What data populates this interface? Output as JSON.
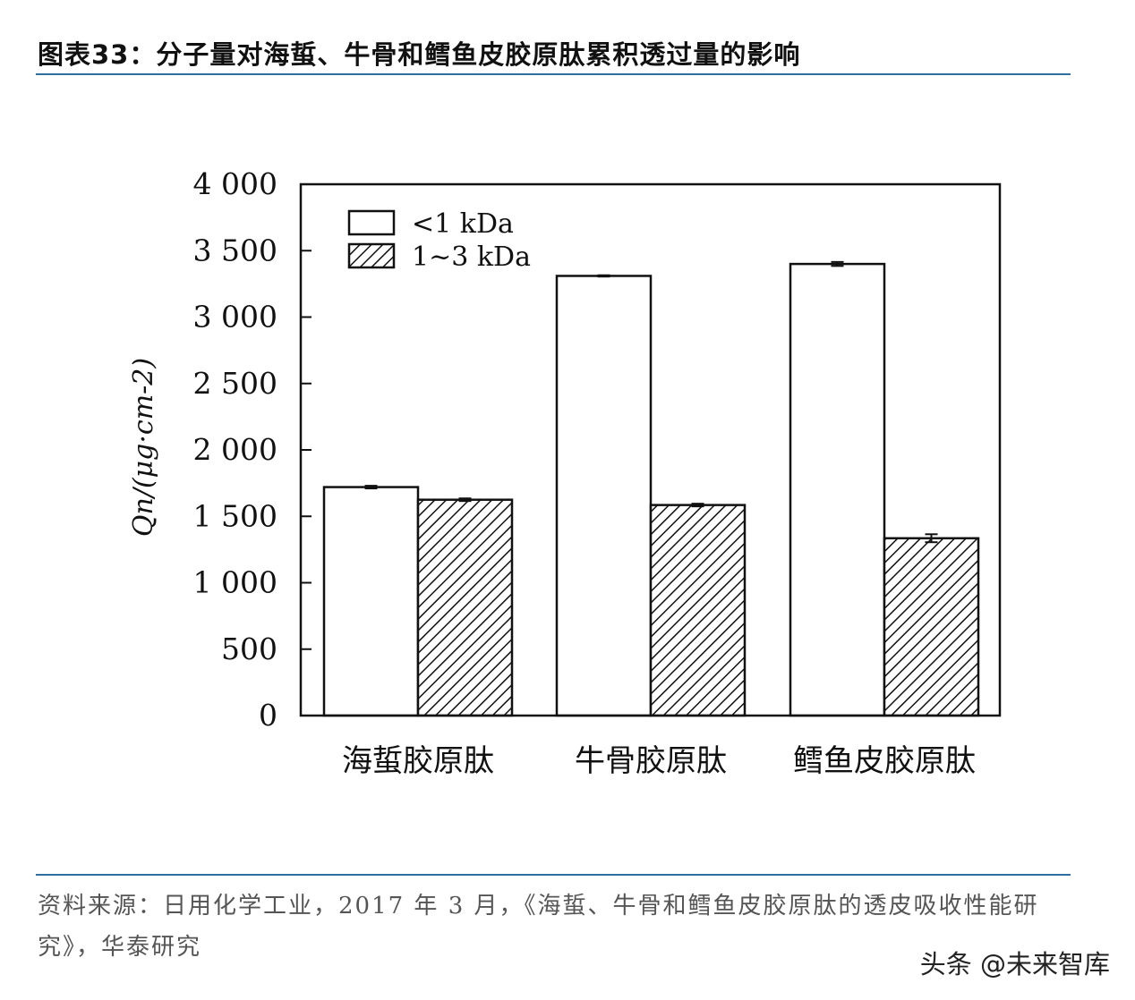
{
  "header": {
    "title": "图表33：分子量对海蜇、牛骨和鳕鱼皮胶原肽累积透过量的影响"
  },
  "footer": {
    "source": "资料来源：日用化学工业，2017 年 3 月，《海蜇、牛骨和鳕鱼皮胶原肽的透皮吸收性能研究》，华泰研究",
    "watermark": "头条 @未来智库"
  },
  "colors": {
    "rule": "#2f6f9f",
    "bar_fill": "#ffffff",
    "bar_stroke": "#111111"
  },
  "chart_data": {
    "type": "bar",
    "categories": [
      "海蜇胶原肽",
      "牛骨胶原肽",
      "鳕鱼皮胶原肽"
    ],
    "series": [
      {
        "name": "<1 kDa",
        "values": [
          1720,
          3310,
          3400
        ],
        "errors": [
          10,
          5,
          15
        ],
        "pattern": "solid-white"
      },
      {
        "name": "1~3 kDa",
        "values": [
          1625,
          1585,
          1335
        ],
        "errors": [
          10,
          10,
          30
        ],
        "pattern": "diagonal-hatch"
      }
    ],
    "ylabel": "Qn/(μg·cm-2)",
    "ylim": [
      0,
      4000
    ],
    "yticks": [
      0,
      500,
      1000,
      1500,
      2000,
      2500,
      3000,
      3500,
      4000
    ],
    "ytick_labels": [
      "0",
      "500",
      "1 000",
      "1 500",
      "2 000",
      "2 500",
      "3 000",
      "3 500",
      "4 000"
    ],
    "grid": false,
    "legend_position": "top-left"
  }
}
